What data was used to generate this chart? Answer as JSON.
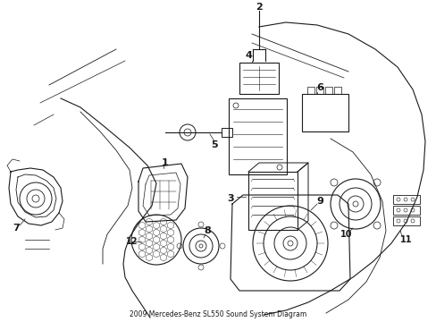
{
  "title": "2009 Mercedes-Benz SL550 Sound System Diagram",
  "background_color": "#ffffff",
  "line_color": "#1a1a1a",
  "figsize": [
    4.89,
    3.6
  ],
  "dpi": 100,
  "xlim": [
    0,
    489
  ],
  "ylim": [
    0,
    360
  ]
}
